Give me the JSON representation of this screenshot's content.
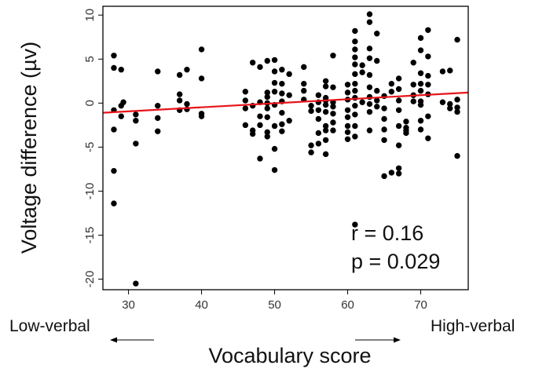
{
  "chart_data": {
    "type": "scatter",
    "xlabel": "Vocabulary score",
    "ylabel": "Voltage difference (µv)",
    "xlim": [
      26.5,
      76.5
    ],
    "ylim": [
      -21.2,
      11.0
    ],
    "x_ticks": [
      30,
      40,
      50,
      60,
      70
    ],
    "x_tick_labels": [
      "30",
      "40",
      "50",
      "60",
      "70"
    ],
    "y_ticks": [
      10,
      5,
      0,
      -5,
      -10,
      -15,
      -20
    ],
    "y_tick_labels": [
      "10",
      "5",
      "0",
      "-5",
      "-10",
      "-15",
      "-20"
    ],
    "grid": false,
    "annotations": [
      "r = 0.16",
      "p = 0.029"
    ],
    "left_label": "Low-verbal",
    "right_label": "High-verbal",
    "point_color": "#000000",
    "fit_color": "#e8141b",
    "fit_line": {
      "x": [
        26.5,
        76.5
      ],
      "y": [
        -1.1,
        1.2
      ]
    },
    "points": [
      [
        28,
        5.4
      ],
      [
        28,
        4.0
      ],
      [
        28,
        -0.8
      ],
      [
        28,
        -3.0
      ],
      [
        28,
        -7.7
      ],
      [
        28,
        -11.4
      ],
      [
        29,
        3.8
      ],
      [
        29,
        -0.3
      ],
      [
        29,
        -1.5
      ],
      [
        29.3,
        0.1
      ],
      [
        31,
        -1.3
      ],
      [
        31,
        -2.0
      ],
      [
        31,
        -4.6
      ],
      [
        31,
        -20.5
      ],
      [
        34,
        3.6
      ],
      [
        34,
        -0.3
      ],
      [
        34,
        -1.7
      ],
      [
        34,
        -3.2
      ],
      [
        37,
        3.2
      ],
      [
        37,
        1.0
      ],
      [
        37,
        0.3
      ],
      [
        37,
        -0.8
      ],
      [
        38,
        3.8
      ],
      [
        38,
        -0.1
      ],
      [
        38,
        -0.7
      ],
      [
        40,
        6.1
      ],
      [
        40,
        2.8
      ],
      [
        40,
        -1.2
      ],
      [
        40,
        -1.5
      ],
      [
        46,
        1.3
      ],
      [
        46,
        0.3
      ],
      [
        46,
        -0.6
      ],
      [
        46,
        -2.5
      ],
      [
        47,
        4.6
      ],
      [
        47,
        -0.3
      ],
      [
        47,
        -3.1
      ],
      [
        47,
        -3.5
      ],
      [
        48,
        4.1
      ],
      [
        48,
        0.1
      ],
      [
        48,
        -1.5
      ],
      [
        48,
        -2.5
      ],
      [
        48,
        -6.3
      ],
      [
        49,
        4.8
      ],
      [
        49,
        1.2
      ],
      [
        49,
        0.7
      ],
      [
        49,
        0.0
      ],
      [
        49,
        -0.6
      ],
      [
        49,
        -1.6
      ],
      [
        49,
        -3.3
      ],
      [
        49,
        -3.8
      ],
      [
        50,
        4.9
      ],
      [
        50,
        3.6
      ],
      [
        50,
        2.3
      ],
      [
        50,
        1.3
      ],
      [
        50,
        -0.2
      ],
      [
        50,
        -2.6
      ],
      [
        50,
        -5.2
      ],
      [
        50,
        -7.6
      ],
      [
        51,
        3.8
      ],
      [
        51,
        2.2
      ],
      [
        51,
        1.1
      ],
      [
        51,
        0.2
      ],
      [
        51,
        -1.1
      ],
      [
        51,
        -2.4
      ],
      [
        51,
        -3.2
      ],
      [
        52,
        3.3
      ],
      [
        52,
        0.9
      ],
      [
        52,
        -2.0
      ],
      [
        54,
        4.1
      ],
      [
        54,
        2.2
      ],
      [
        54,
        1.4
      ],
      [
        54,
        0.4
      ],
      [
        55,
        -0.3
      ],
      [
        55,
        -0.9
      ],
      [
        55,
        -4.8
      ],
      [
        55,
        -5.6
      ],
      [
        56,
        0.9
      ],
      [
        56,
        0.1
      ],
      [
        56,
        -0.8
      ],
      [
        56,
        -1.8
      ],
      [
        56,
        -3.4
      ],
      [
        56,
        -4.6
      ],
      [
        57,
        2.5
      ],
      [
        57,
        1.9
      ],
      [
        57,
        0.6
      ],
      [
        57,
        0.3
      ],
      [
        57,
        -0.2
      ],
      [
        57,
        -1.0
      ],
      [
        57,
        -2.6
      ],
      [
        57,
        -3.1
      ],
      [
        57,
        -4.2
      ],
      [
        57,
        -5.8
      ],
      [
        58,
        5.4
      ],
      [
        58,
        1.8
      ],
      [
        58,
        0.1
      ],
      [
        58,
        -0.4
      ],
      [
        58,
        -1.2
      ],
      [
        58,
        -2.2
      ],
      [
        58,
        -3.1
      ],
      [
        60,
        2.1
      ],
      [
        60,
        1.2
      ],
      [
        60,
        0.4
      ],
      [
        60,
        -0.8
      ],
      [
        60,
        -1.6
      ],
      [
        60,
        -2.6
      ],
      [
        60,
        -3.3
      ],
      [
        60,
        -4.1
      ],
      [
        61,
        8.2
      ],
      [
        61,
        7.0
      ],
      [
        61,
        6.1
      ],
      [
        61,
        5.2
      ],
      [
        61,
        4.4
      ],
      [
        61,
        3.3
      ],
      [
        61,
        2.2
      ],
      [
        61,
        1.4
      ],
      [
        61,
        0.6
      ],
      [
        61,
        -0.3
      ],
      [
        61,
        -1.3
      ],
      [
        61,
        -2.6
      ],
      [
        61,
        -3.8
      ],
      [
        61,
        -13.8
      ],
      [
        62,
        4.3
      ],
      [
        62,
        3.5
      ],
      [
        62,
        0.1
      ],
      [
        63,
        10.1
      ],
      [
        63,
        9.2
      ],
      [
        63,
        6.2
      ],
      [
        63,
        5.1
      ],
      [
        63,
        3.2
      ],
      [
        63,
        1.8
      ],
      [
        63,
        0.7
      ],
      [
        63,
        -0.1
      ],
      [
        63,
        -1.0
      ],
      [
        63,
        -3.1
      ],
      [
        64,
        7.9
      ],
      [
        64,
        4.8
      ],
      [
        64,
        1.4
      ],
      [
        64,
        0.3
      ],
      [
        64,
        -0.4
      ],
      [
        65,
        0.8
      ],
      [
        65,
        -0.6
      ],
      [
        65,
        -1.8
      ],
      [
        65,
        -3.0
      ],
      [
        65,
        -4.2
      ],
      [
        65,
        -8.3
      ],
      [
        66,
        2.2
      ],
      [
        66,
        1.3
      ],
      [
        66,
        -7.9
      ],
      [
        67,
        2.8
      ],
      [
        67,
        1.6
      ],
      [
        67,
        0.3
      ],
      [
        67,
        -0.8
      ],
      [
        67,
        -2.6
      ],
      [
        67,
        -4.8
      ],
      [
        67,
        -7.4
      ],
      [
        67,
        -8.0
      ],
      [
        68,
        -2.1
      ],
      [
        68,
        -2.8
      ],
      [
        68,
        -3.1
      ],
      [
        68,
        -3.4
      ],
      [
        69,
        4.6
      ],
      [
        69,
        2.1
      ],
      [
        69,
        0.9
      ],
      [
        69,
        0.2
      ],
      [
        70,
        7.4
      ],
      [
        70,
        6.0
      ],
      [
        70,
        3.4
      ],
      [
        70,
        2.2
      ],
      [
        70,
        1.4
      ],
      [
        70,
        0.2
      ],
      [
        70,
        -0.2
      ],
      [
        70,
        -2.0
      ],
      [
        70,
        -3.0
      ],
      [
        71,
        8.3
      ],
      [
        71,
        5.3
      ],
      [
        71,
        3.1
      ],
      [
        71,
        2.1
      ],
      [
        71,
        1.0
      ],
      [
        71,
        -1.5
      ],
      [
        71,
        -4.0
      ],
      [
        73,
        3.6
      ],
      [
        73,
        0.1
      ],
      [
        74,
        3.7
      ],
      [
        74,
        -0.1
      ],
      [
        74,
        -0.6
      ],
      [
        75,
        7.2
      ],
      [
        75,
        0.4
      ],
      [
        75,
        -0.5
      ],
      [
        75,
        -1.0
      ],
      [
        75,
        -6.0
      ]
    ]
  }
}
